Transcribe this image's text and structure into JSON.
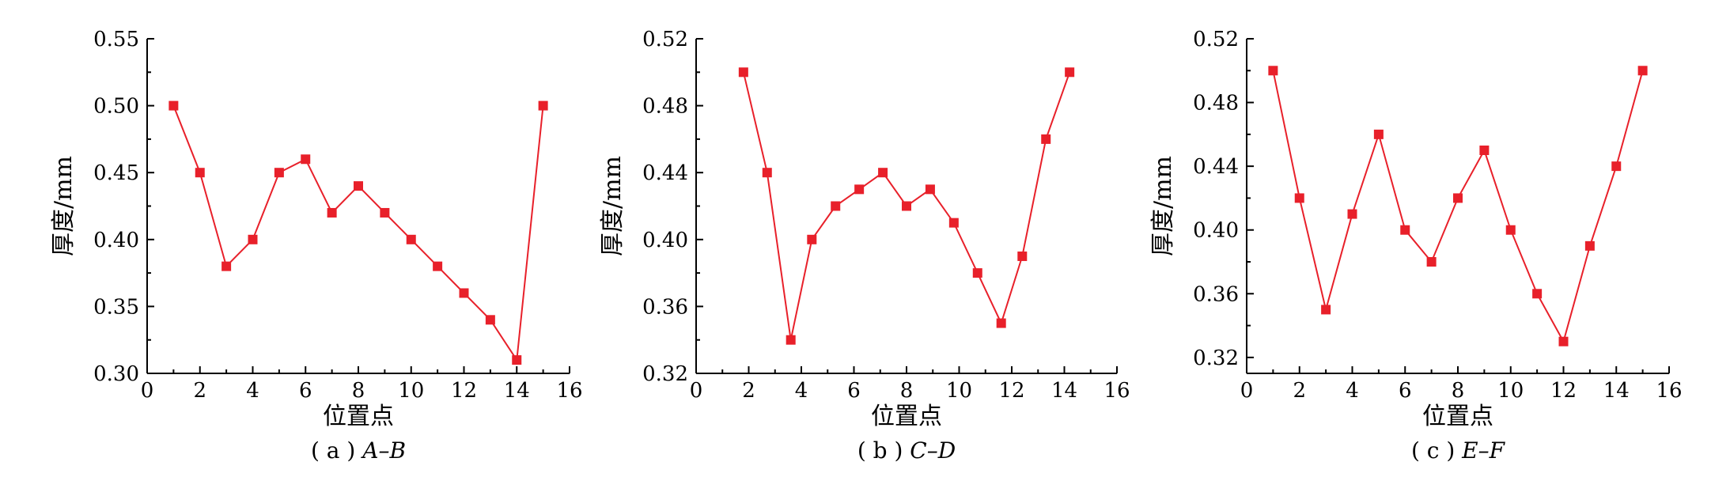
{
  "series_color": "#e8202a",
  "chart_data": [
    {
      "type": "line",
      "caption_prefix": "( a ) ",
      "caption_label": "A–B",
      "xlabel": "位置点",
      "ylabel": "厚度/mm",
      "xlim": [
        0,
        16
      ],
      "ylim": [
        0.3,
        0.55
      ],
      "xticks": [
        0,
        2,
        4,
        6,
        8,
        10,
        12,
        14,
        16
      ],
      "yticks": [
        0.3,
        0.35,
        0.4,
        0.45,
        0.5,
        0.55
      ],
      "ytick_decimals": 2,
      "grid": false,
      "series": [
        {
          "x": [
            1,
            2,
            3,
            4,
            5,
            6,
            7,
            8,
            9,
            10,
            11,
            12,
            13,
            14,
            15
          ],
          "values": [
            0.5,
            0.45,
            0.38,
            0.4,
            0.45,
            0.46,
            0.42,
            0.44,
            0.42,
            0.4,
            0.38,
            0.36,
            0.34,
            0.31,
            0.5
          ]
        }
      ]
    },
    {
      "type": "line",
      "caption_prefix": "( b ) ",
      "caption_label": "C–D",
      "xlabel": "位置点",
      "ylabel": "厚度/mm",
      "xlim": [
        0,
        16
      ],
      "ylim": [
        0.32,
        0.52
      ],
      "xticks": [
        0,
        2,
        4,
        6,
        8,
        10,
        12,
        14,
        16
      ],
      "yticks": [
        0.32,
        0.36,
        0.4,
        0.44,
        0.48,
        0.52
      ],
      "ytick_decimals": 2,
      "grid": false,
      "series": [
        {
          "x": [
            1.8,
            2.7,
            3.6,
            4.4,
            5.3,
            6.2,
            7.1,
            8.0,
            8.9,
            9.8,
            10.7,
            11.6,
            12.4,
            13.3,
            14.2
          ],
          "values": [
            0.5,
            0.44,
            0.34,
            0.4,
            0.42,
            0.43,
            0.44,
            0.42,
            0.43,
            0.41,
            0.38,
            0.35,
            0.39,
            0.46,
            0.5
          ]
        }
      ]
    },
    {
      "type": "line",
      "caption_prefix": "( c ) ",
      "caption_label": "E–F",
      "xlabel": "位置点",
      "ylabel": "厚度/mm",
      "xlim": [
        0,
        16
      ],
      "ylim": [
        0.31,
        0.52
      ],
      "xticks": [
        0,
        2,
        4,
        6,
        8,
        10,
        12,
        14,
        16
      ],
      "yticks": [
        0.32,
        0.36,
        0.4,
        0.44,
        0.48,
        0.52
      ],
      "ytick_decimals": 2,
      "grid": false,
      "series": [
        {
          "x": [
            1,
            2,
            3,
            4,
            5,
            6,
            7,
            8,
            9,
            10,
            11,
            12,
            13,
            14,
            15
          ],
          "values": [
            0.5,
            0.42,
            0.35,
            0.41,
            0.46,
            0.4,
            0.38,
            0.42,
            0.45,
            0.4,
            0.36,
            0.33,
            0.39,
            0.44,
            0.5
          ]
        }
      ]
    }
  ]
}
